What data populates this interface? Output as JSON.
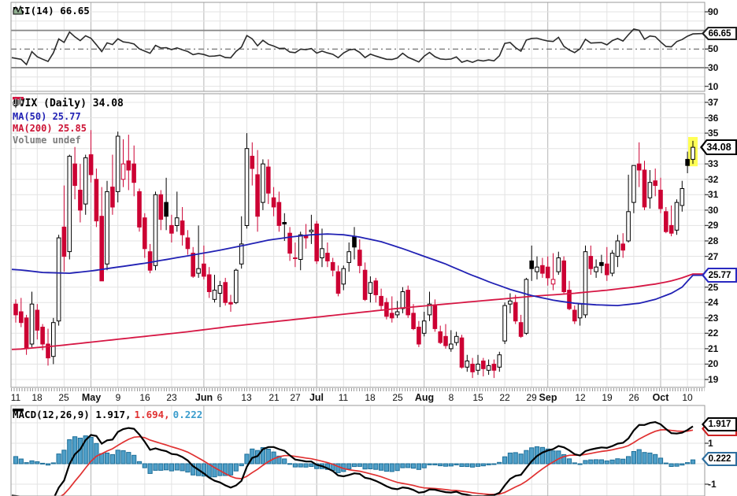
{
  "rsi": {
    "legend": "RSI(14) 66.65",
    "callout": "66.65",
    "axis": [
      90,
      50,
      30,
      10
    ]
  },
  "main": {
    "legend_symbol": "$VIX (Daily) 34.08",
    "legend_ma50": "MA(50) 25.77",
    "legend_ma200": "MA(200) 25.85",
    "legend_volume": "Volume undef",
    "callout_price": "34.08",
    "callout_ma": "25.77",
    "axis": [
      37,
      36,
      35,
      33,
      32,
      31,
      30,
      29,
      28,
      27,
      25,
      24,
      23,
      22,
      21,
      20,
      19
    ]
  },
  "macd": {
    "legend_name": "MACD(12,26,9) 1.917,",
    "legend_signal": " 1.694,",
    "legend_hist": " 0.222",
    "callout_macd": "1.917",
    "callout_signal": "1.694",
    "callout_hist": "0.222",
    "axis": [
      1,
      -1
    ]
  },
  "colors": {
    "up": "#000000",
    "down": "#cc0033",
    "ma50": "#2121b4",
    "ma200": "#d61744",
    "macd_line": "#000000",
    "signal_line": "#e03131",
    "hist_fill": "#4f9fc8",
    "hist_stroke": "#1d6f99",
    "highlight": "#ffff55",
    "grid_light": "#e3e3e3",
    "grid_month": "#b5b5b5",
    "band_line": "#858585",
    "border": "#9a9a9a",
    "rsi_line": "#2b2b2b"
  },
  "chart_data": [
    {
      "type": "candlestick",
      "symbol": "$VIX",
      "timeframe": "Daily",
      "last_close": 34.08,
      "ylim": [
        19,
        37
      ],
      "ma50_last": 25.77,
      "ma200_last": 25.85,
      "xticks": [
        [
          "11",
          0,
          0
        ],
        [
          "18",
          4,
          0
        ],
        [
          "25",
          9,
          0
        ],
        [
          "May",
          14,
          1
        ],
        [
          "9",
          19,
          0
        ],
        [
          "16",
          24,
          0
        ],
        [
          "23",
          29,
          0
        ],
        [
          "Jun",
          35,
          1
        ],
        [
          "6",
          38,
          0
        ],
        [
          "13",
          43,
          0
        ],
        [
          "21",
          48,
          0
        ],
        [
          "27",
          52,
          0
        ],
        [
          "Jul",
          56,
          1
        ],
        [
          "11",
          61,
          0
        ],
        [
          "18",
          66,
          0
        ],
        [
          "25",
          71,
          0
        ],
        [
          "Aug",
          76,
          1
        ],
        [
          "8",
          81,
          0
        ],
        [
          "15",
          86,
          0
        ],
        [
          "22",
          91,
          0
        ],
        [
          "29",
          96,
          0
        ],
        [
          "Sep",
          99,
          1
        ],
        [
          "12",
          105,
          0
        ],
        [
          "19",
          110,
          0
        ],
        [
          "26",
          115,
          0
        ],
        [
          "Oct",
          120,
          1
        ],
        [
          "10",
          125,
          0
        ]
      ],
      "ohlc": [
        [
          23.9,
          24.2,
          22.7,
          23.2
        ],
        [
          23.4,
          24.3,
          22.4,
          22.7
        ],
        [
          23.0,
          23.2,
          20.6,
          21.0
        ],
        [
          21.3,
          24.7,
          21.1,
          23.9
        ],
        [
          23.5,
          23.9,
          21.6,
          22.2
        ],
        [
          22.4,
          22.6,
          20.9,
          21.3
        ],
        [
          21.3,
          22.3,
          19.9,
          20.4
        ],
        [
          20.5,
          23.0,
          20.0,
          22.7
        ],
        [
          22.8,
          28.4,
          22.5,
          28.2
        ],
        [
          28.9,
          31.6,
          26.0,
          27.0
        ],
        [
          27.3,
          33.6,
          26.8,
          33.5
        ],
        [
          33.0,
          34.1,
          30.7,
          31.6
        ],
        [
          31.3,
          33.0,
          29.2,
          30.0
        ],
        [
          30.4,
          33.6,
          29.7,
          33.4
        ],
        [
          33.6,
          35.2,
          31.8,
          32.3
        ],
        [
          32.0,
          32.7,
          28.9,
          29.3
        ],
        [
          29.6,
          31.5,
          25.4,
          25.4
        ],
        [
          26.5,
          31.9,
          26.1,
          31.2
        ],
        [
          31.5,
          33.6,
          29.7,
          30.2
        ],
        [
          31.2,
          35.1,
          30.5,
          34.8
        ],
        [
          32.0,
          34.6,
          31.5,
          33.0
        ],
        [
          33.2,
          34.9,
          31.3,
          32.6
        ],
        [
          33.0,
          34.2,
          30.9,
          31.8
        ],
        [
          31.2,
          31.4,
          28.6,
          28.9
        ],
        [
          29.5,
          29.8,
          26.9,
          27.5
        ],
        [
          27.3,
          27.8,
          25.9,
          26.1
        ],
        [
          26.4,
          31.2,
          26.1,
          31.0
        ],
        [
          31.0,
          31.3,
          28.7,
          29.4
        ],
        [
          30.5,
          32.1,
          28.7,
          29.6
        ],
        [
          29.0,
          29.7,
          27.9,
          28.5
        ],
        [
          29.0,
          31.2,
          28.6,
          29.5
        ],
        [
          29.3,
          30.2,
          27.7,
          28.4
        ],
        [
          28.2,
          28.7,
          27.1,
          27.5
        ],
        [
          27.2,
          27.6,
          25.6,
          25.7
        ],
        [
          25.9,
          29.0,
          25.6,
          26.2
        ],
        [
          26.5,
          27.7,
          25.5,
          25.7
        ],
        [
          25.8,
          26.3,
          24.3,
          24.7
        ],
        [
          24.2,
          25.8,
          24.0,
          24.8
        ],
        [
          24.6,
          25.4,
          23.7,
          25.1
        ],
        [
          25.3,
          25.6,
          23.8,
          24.0
        ],
        [
          24.0,
          24.5,
          23.4,
          23.9
        ],
        [
          24.0,
          26.2,
          23.9,
          26.1
        ],
        [
          26.5,
          29.6,
          26.2,
          27.8
        ],
        [
          29.0,
          35.0,
          28.8,
          34.0
        ],
        [
          33.5,
          34.4,
          31.6,
          32.7
        ],
        [
          32.3,
          33.9,
          28.6,
          29.6
        ],
        [
          30.5,
          33.3,
          30.0,
          33.0
        ],
        [
          32.8,
          33.3,
          30.4,
          31.1
        ],
        [
          30.8,
          31.5,
          29.6,
          30.2
        ],
        [
          30.5,
          31.2,
          28.6,
          29.0
        ],
        [
          29.2,
          29.8,
          28.0,
          29.1
        ],
        [
          28.5,
          28.9,
          26.7,
          27.2
        ],
        [
          26.9,
          27.9,
          26.3,
          26.9
        ],
        [
          26.8,
          28.6,
          26.1,
          28.4
        ],
        [
          28.3,
          29.1,
          27.5,
          28.2
        ],
        [
          28.6,
          29.7,
          27.8,
          28.7
        ],
        [
          29.1,
          29.3,
          26.5,
          26.7
        ],
        [
          26.9,
          28.8,
          26.3,
          27.5
        ],
        [
          27.2,
          27.9,
          26.3,
          26.7
        ],
        [
          26.6,
          26.9,
          25.7,
          26.1
        ],
        [
          26.0,
          26.4,
          24.4,
          24.6
        ],
        [
          25.2,
          26.4,
          24.8,
          26.2
        ],
        [
          26.6,
          27.9,
          26.0,
          27.3
        ],
        [
          28.3,
          28.9,
          26.8,
          27.6
        ],
        [
          27.4,
          28.1,
          25.9,
          26.4
        ],
        [
          26.1,
          26.6,
          24.1,
          24.2
        ],
        [
          24.6,
          25.7,
          24.0,
          25.3
        ],
        [
          25.4,
          25.6,
          24.0,
          24.5
        ],
        [
          24.4,
          24.9,
          23.5,
          23.8
        ],
        [
          24.0,
          24.3,
          22.9,
          23.1
        ],
        [
          23.3,
          24.4,
          22.7,
          23.0
        ],
        [
          23.2,
          24.1,
          23.0,
          23.4
        ],
        [
          23.6,
          25.0,
          23.3,
          24.7
        ],
        [
          24.8,
          25.1,
          23.0,
          23.2
        ],
        [
          23.3,
          23.9,
          22.2,
          22.3
        ],
        [
          22.4,
          22.8,
          21.1,
          21.3
        ],
        [
          22.0,
          23.4,
          21.8,
          22.8
        ],
        [
          23.2,
          24.7,
          22.8,
          23.9
        ],
        [
          23.8,
          24.2,
          22.1,
          22.3
        ],
        [
          22.1,
          22.5,
          21.3,
          21.4
        ],
        [
          21.8,
          22.6,
          21.0,
          21.2
        ],
        [
          21.0,
          22.2,
          20.8,
          21.3
        ],
        [
          21.4,
          22.1,
          21.2,
          21.8
        ],
        [
          21.7,
          21.9,
          19.7,
          19.8
        ],
        [
          19.8,
          20.6,
          19.5,
          20.2
        ],
        [
          20.0,
          20.4,
          19.1,
          19.5
        ],
        [
          19.6,
          20.6,
          19.3,
          20.0
        ],
        [
          20.2,
          20.4,
          19.2,
          19.7
        ],
        [
          19.6,
          20.3,
          19.3,
          19.9
        ],
        [
          20.0,
          20.3,
          19.1,
          19.6
        ],
        [
          19.8,
          20.8,
          19.5,
          20.6
        ],
        [
          21.5,
          24.0,
          21.3,
          23.8
        ],
        [
          23.9,
          24.6,
          23.3,
          24.1
        ],
        [
          24.0,
          24.5,
          22.6,
          22.8
        ],
        [
          22.7,
          23.2,
          21.7,
          21.8
        ],
        [
          22.0,
          25.6,
          21.9,
          25.5
        ],
        [
          26.7,
          27.7,
          25.4,
          26.2
        ],
        [
          26.0,
          27.0,
          25.5,
          26.3
        ],
        [
          26.4,
          26.9,
          25.6,
          25.9
        ],
        [
          26.3,
          27.0,
          25.1,
          25.6
        ],
        [
          25.2,
          27.2,
          24.8,
          25.5
        ],
        [
          26.0,
          27.3,
          25.8,
          26.9
        ],
        [
          26.7,
          27.0,
          24.6,
          24.7
        ],
        [
          24.8,
          25.4,
          23.5,
          23.6
        ],
        [
          23.5,
          23.8,
          22.6,
          22.8
        ],
        [
          23.0,
          23.9,
          22.5,
          23.9
        ],
        [
          23.2,
          27.7,
          23.0,
          27.3
        ],
        [
          27.0,
          27.7,
          25.8,
          26.2
        ],
        [
          26.0,
          26.8,
          25.6,
          26.3
        ],
        [
          26.6,
          27.1,
          25.9,
          26.4
        ],
        [
          26.5,
          27.6,
          25.4,
          25.8
        ],
        [
          25.9,
          27.4,
          25.7,
          27.2
        ],
        [
          27.0,
          28.4,
          26.3,
          28.0
        ],
        [
          27.8,
          28.5,
          26.9,
          27.4
        ],
        [
          28.0,
          32.3,
          27.9,
          29.9
        ],
        [
          30.5,
          32.9,
          29.8,
          32.9
        ],
        [
          33.0,
          34.4,
          31.5,
          32.6
        ],
        [
          32.6,
          33.2,
          30.0,
          30.2
        ],
        [
          30.8,
          32.6,
          30.1,
          31.8
        ],
        [
          31.9,
          32.7,
          30.9,
          31.6
        ],
        [
          31.3,
          32.1,
          29.8,
          30.1
        ],
        [
          29.9,
          30.2,
          28.5,
          28.6
        ],
        [
          29.0,
          30.3,
          28.3,
          28.5
        ],
        [
          28.7,
          30.7,
          28.4,
          30.5
        ],
        [
          30.3,
          31.9,
          29.9,
          31.4
        ],
        [
          33.3,
          33.8,
          32.4,
          32.9
        ],
        [
          33.3,
          34.5,
          33.0,
          34.08
        ]
      ],
      "ma50_points": [
        [
          0,
          26.15
        ],
        [
          5,
          25.95
        ],
        [
          10,
          25.9
        ],
        [
          14,
          26.05
        ],
        [
          19,
          26.3
        ],
        [
          24,
          26.55
        ],
        [
          29,
          26.85
        ],
        [
          34,
          27.15
        ],
        [
          38,
          27.4
        ],
        [
          43,
          27.75
        ],
        [
          47,
          28.05
        ],
        [
          51,
          28.25
        ],
        [
          55,
          28.4
        ],
        [
          58,
          28.45
        ],
        [
          61,
          28.4
        ],
        [
          64,
          28.25
        ],
        [
          68,
          27.95
        ],
        [
          72,
          27.5
        ],
        [
          76,
          27.0
        ],
        [
          80,
          26.5
        ],
        [
          84,
          25.9
        ],
        [
          88,
          25.35
        ],
        [
          92,
          24.85
        ],
        [
          96,
          24.45
        ],
        [
          100,
          24.15
        ],
        [
          104,
          23.95
        ],
        [
          108,
          23.85
        ],
        [
          112,
          23.8
        ],
        [
          116,
          23.95
        ],
        [
          119,
          24.2
        ],
        [
          122,
          24.6
        ],
        [
          124,
          25.0
        ],
        [
          126,
          25.77
        ]
      ],
      "ma200_points": [
        [
          0,
          20.95
        ],
        [
          8,
          21.2
        ],
        [
          16,
          21.5
        ],
        [
          24,
          21.8
        ],
        [
          32,
          22.1
        ],
        [
          40,
          22.45
        ],
        [
          48,
          22.75
        ],
        [
          56,
          23.05
        ],
        [
          64,
          23.35
        ],
        [
          72,
          23.65
        ],
        [
          80,
          23.9
        ],
        [
          88,
          24.15
        ],
        [
          96,
          24.4
        ],
        [
          104,
          24.6
        ],
        [
          110,
          24.8
        ],
        [
          115,
          25.0
        ],
        [
          119,
          25.2
        ],
        [
          122,
          25.4
        ],
        [
          124,
          25.6
        ],
        [
          126,
          25.85
        ]
      ]
    },
    {
      "type": "line",
      "indicator": "RSI",
      "period": 14,
      "last": 66.65,
      "ylim": [
        0,
        100
      ],
      "bands": [
        30,
        50,
        70
      ],
      "computed_from": "ohlc closes"
    },
    {
      "type": "bar",
      "indicator": "MACD",
      "params": [
        12,
        26,
        9
      ],
      "last_macd": 1.917,
      "last_signal": 1.694,
      "last_hist": 0.222,
      "ylim": [
        -1.6,
        2.85
      ],
      "computed_from": "ohlc closes"
    }
  ]
}
